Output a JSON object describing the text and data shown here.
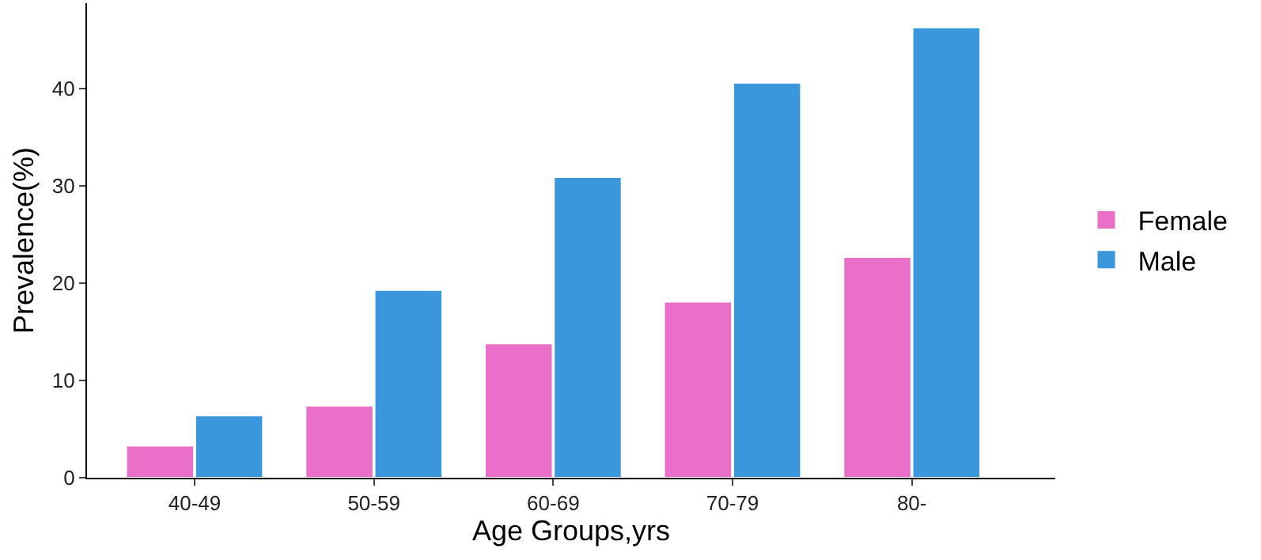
{
  "chart_data": {
    "type": "bar",
    "xlabel": "Age Groups,yrs",
    "ylabel": "Prevalence(%)",
    "categories": [
      "40-49",
      "50-59",
      "60-69",
      "70-79",
      "80-"
    ],
    "series": [
      {
        "name": "Female",
        "color": "#e96fc8",
        "values": [
          3.3,
          7.4,
          13.8,
          18.1,
          22.7
        ]
      },
      {
        "name": "Male",
        "color": "#3a97db",
        "values": [
          6.4,
          19.3,
          30.9,
          40.6,
          46.3
        ]
      }
    ],
    "ylim": [
      0,
      48.8
    ],
    "yticks": [
      0,
      10,
      20,
      30,
      40
    ],
    "legend": "right"
  }
}
